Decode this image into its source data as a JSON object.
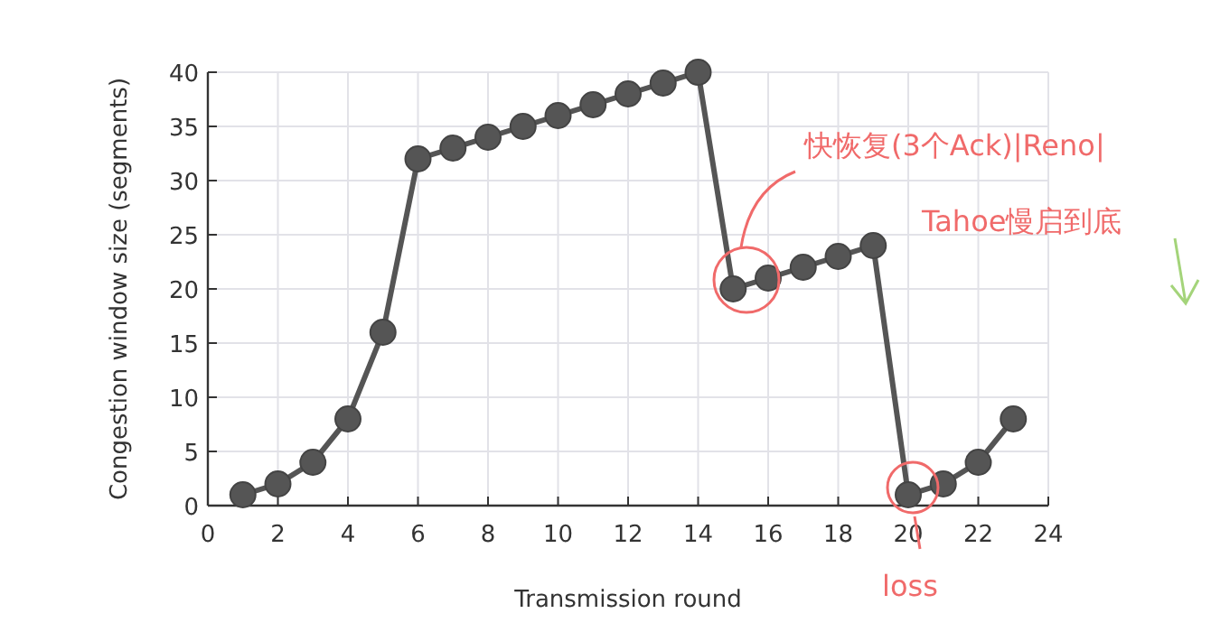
{
  "chart_data": {
    "type": "line",
    "xlabel": "Transmission round",
    "ylabel": "Congestion window size (segments)",
    "x": [
      1,
      2,
      3,
      4,
      5,
      6,
      7,
      8,
      9,
      10,
      11,
      12,
      13,
      14,
      15,
      16,
      17,
      18,
      19,
      20,
      21,
      22,
      23
    ],
    "series": [
      {
        "color": "#555555",
        "values": [
          1,
          2,
          4,
          8,
          16,
          32,
          33,
          34,
          35,
          36,
          37,
          38,
          39,
          40,
          20,
          21,
          22,
          23,
          24,
          1,
          2,
          4,
          8
        ]
      }
    ],
    "xlim": [
      0,
      24
    ],
    "xticks": [
      0,
      2,
      4,
      6,
      8,
      10,
      12,
      14,
      16,
      18,
      20,
      22,
      24
    ],
    "ylim": [
      0,
      40
    ],
    "yticks": [
      0,
      5,
      10,
      15,
      20,
      25,
      30,
      35,
      40
    ],
    "grid": true,
    "marker": "circle",
    "line_style": "solid",
    "annotations": [
      "快恢复(3个Ack)|Reno|",
      "Tahoe慢启到底",
      "loss"
    ]
  }
}
